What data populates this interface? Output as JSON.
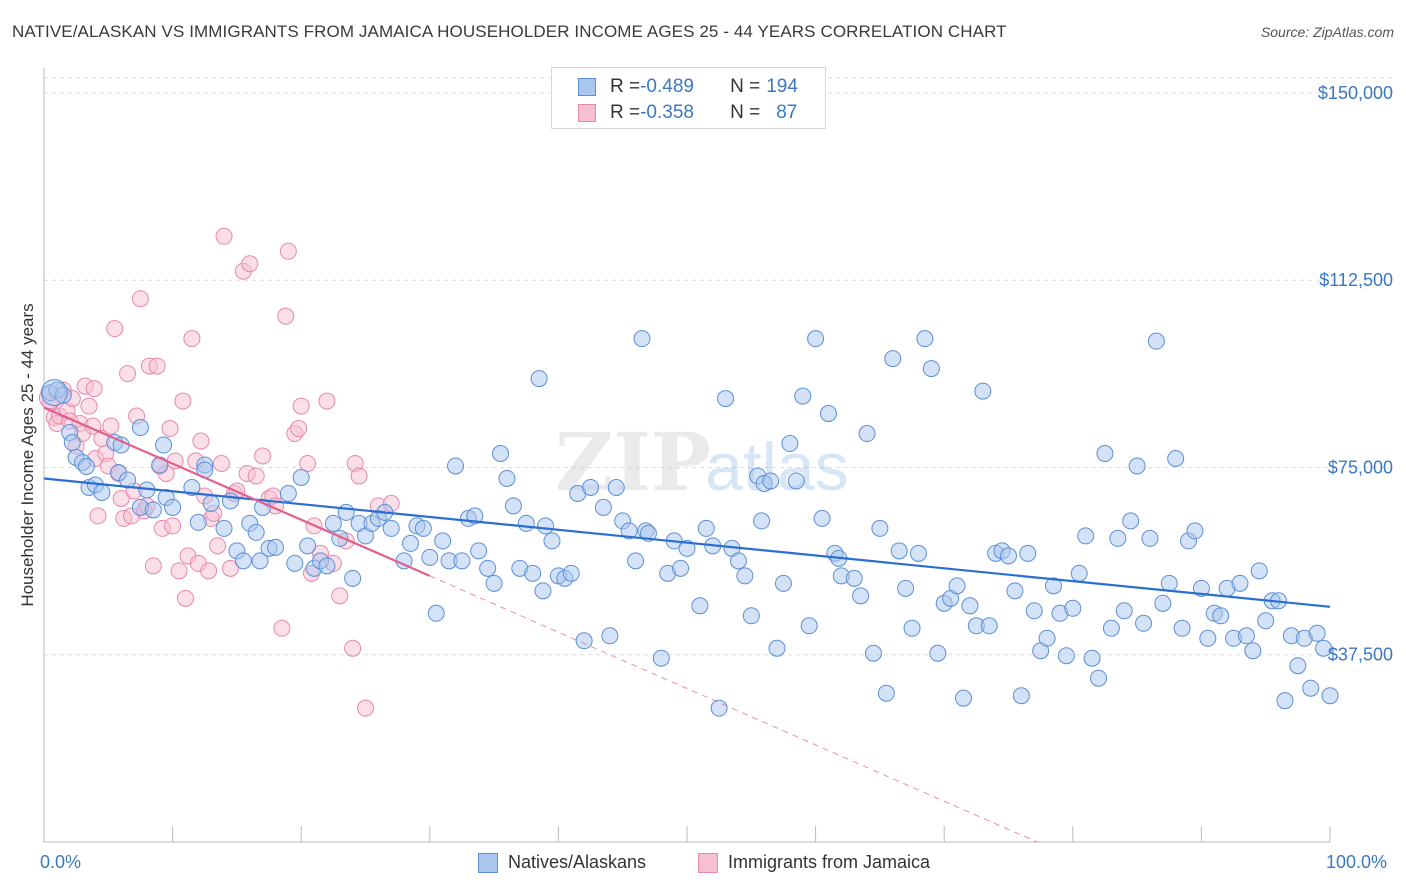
{
  "title": "NATIVE/ALASKAN VS IMMIGRANTS FROM JAMAICA HOUSEHOLDER INCOME AGES 25 - 44 YEARS CORRELATION CHART",
  "source": "Source: ZipAtlas.com",
  "watermark": {
    "part1": "ZIP",
    "part2": "atlas"
  },
  "colors": {
    "blue": "#5b8fd6",
    "blue_fill": "#a9c6ef",
    "blue_line": "#2a6fd0",
    "pink": "#e888aa",
    "pink_fill": "#f6bfd2",
    "pink_line": "#e0608e",
    "axis_text": "#3b78c4",
    "grid": "#dedede"
  },
  "legend_top": [
    {
      "r_label": "R = ",
      "r_value": "-0.489",
      "n_label": "N = ",
      "n_value": "194"
    },
    {
      "r_label": "R = ",
      "r_value": "-0.358",
      "n_label": "N = ",
      "n_value": "87"
    }
  ],
  "legend_bottom": [
    "Natives/Alaskans",
    "Immigrants from Jamaica"
  ],
  "chart_data": {
    "type": "scatter",
    "title": "NATIVE/ALASKAN VS IMMIGRANTS FROM JAMAICA HOUSEHOLDER INCOME AGES 25 - 44 YEARS CORRELATION CHART",
    "xlabel": "",
    "ylabel": "Householder Income Ages 25 - 44 years",
    "x_tick_labels": [
      "0.0%",
      "100.0%"
    ],
    "y_tick_labels": [
      "$37,500",
      "$75,000",
      "$112,500",
      "$150,000"
    ],
    "y_ticks": [
      37500,
      75000,
      112500,
      150000
    ],
    "xlim": [
      0,
      100
    ],
    "ylim": [
      0,
      155000
    ],
    "grid": true,
    "legend_placement": "top-center",
    "series": [
      {
        "name": "Natives/Alaskans",
        "r": -0.489,
        "n": 194,
        "trend": {
          "x": [
            0,
            100
          ],
          "y": [
            72800,
            47100
          ]
        },
        "points": [
          [
            0.5,
            90000
          ],
          [
            1,
            90500
          ],
          [
            1.5,
            89500
          ],
          [
            2,
            82000
          ],
          [
            2.2,
            80000
          ],
          [
            2.5,
            77000
          ],
          [
            3,
            76000
          ],
          [
            3.3,
            75200
          ],
          [
            3.5,
            71000
          ],
          [
            4,
            71500
          ],
          [
            4.5,
            70000
          ],
          [
            5.5,
            80000
          ],
          [
            5.8,
            74000
          ],
          [
            6,
            79500
          ],
          [
            6.5,
            72500
          ],
          [
            7.5,
            83000
          ],
          [
            7.5,
            67000
          ],
          [
            8,
            70500
          ],
          [
            8.5,
            66500
          ],
          [
            9,
            75500
          ],
          [
            9.3,
            79500
          ],
          [
            9.5,
            69000
          ],
          [
            10,
            67000
          ],
          [
            11.5,
            71000
          ],
          [
            12,
            64000
          ],
          [
            12.5,
            75500
          ],
          [
            12.5,
            74500
          ],
          [
            13,
            67800
          ],
          [
            14,
            62800
          ],
          [
            14.5,
            68300
          ],
          [
            15,
            58300
          ],
          [
            15.5,
            56300
          ],
          [
            16,
            63800
          ],
          [
            16.5,
            62000
          ],
          [
            16.8,
            56300
          ],
          [
            17,
            67000
          ],
          [
            17.5,
            58800
          ],
          [
            18,
            59000
          ],
          [
            19,
            69800
          ],
          [
            19.5,
            55800
          ],
          [
            20,
            73000
          ],
          [
            20.5,
            59300
          ],
          [
            21,
            54800
          ],
          [
            21.5,
            56300
          ],
          [
            22,
            55300
          ],
          [
            22.5,
            63800
          ],
          [
            23,
            60800
          ],
          [
            23.5,
            66000
          ],
          [
            24,
            52800
          ],
          [
            24.5,
            63800
          ],
          [
            25,
            61300
          ],
          [
            25.5,
            63800
          ],
          [
            26,
            64800
          ],
          [
            26.5,
            66000
          ],
          [
            27,
            62800
          ],
          [
            28,
            56300
          ],
          [
            28.5,
            59800
          ],
          [
            29,
            63300
          ],
          [
            29.5,
            62800
          ],
          [
            30,
            57000
          ],
          [
            30.5,
            45800
          ],
          [
            31,
            60300
          ],
          [
            31.5,
            56300
          ],
          [
            32,
            75300
          ],
          [
            32.5,
            56300
          ],
          [
            33,
            64800
          ],
          [
            33.5,
            65300
          ],
          [
            33.8,
            58300
          ],
          [
            34.5,
            54800
          ],
          [
            35,
            51800
          ],
          [
            35.5,
            77800
          ],
          [
            36,
            72800
          ],
          [
            36.5,
            67300
          ],
          [
            37,
            54800
          ],
          [
            37.5,
            63800
          ],
          [
            38,
            53800
          ],
          [
            38.5,
            92800
          ],
          [
            38.8,
            50300
          ],
          [
            39,
            63300
          ],
          [
            39.5,
            60300
          ],
          [
            40,
            53300
          ],
          [
            40.5,
            52800
          ],
          [
            41,
            53800
          ],
          [
            41.5,
            69800
          ],
          [
            42,
            40300
          ],
          [
            42.5,
            71000
          ],
          [
            43.5,
            67000
          ],
          [
            44,
            41300
          ],
          [
            44.5,
            71000
          ],
          [
            45,
            64300
          ],
          [
            45.5,
            62300
          ],
          [
            46,
            56300
          ],
          [
            46.5,
            100800
          ],
          [
            46.8,
            62300
          ],
          [
            47,
            61800
          ],
          [
            48,
            36800
          ],
          [
            48.5,
            53800
          ],
          [
            49,
            60300
          ],
          [
            49.5,
            54800
          ],
          [
            50,
            58800
          ],
          [
            51,
            47300
          ],
          [
            51.5,
            62800
          ],
          [
            52,
            59300
          ],
          [
            52.5,
            26800
          ],
          [
            53,
            88800
          ],
          [
            53.5,
            58800
          ],
          [
            54,
            56300
          ],
          [
            54.5,
            53300
          ],
          [
            55,
            45300
          ],
          [
            55.5,
            73300
          ],
          [
            55.8,
            64300
          ],
          [
            56,
            71800
          ],
          [
            56.5,
            72300
          ],
          [
            57,
            38800
          ],
          [
            57.5,
            51800
          ],
          [
            58,
            79800
          ],
          [
            58.5,
            72300
          ],
          [
            59,
            89300
          ],
          [
            59.5,
            43300
          ],
          [
            60,
            100800
          ],
          [
            60.5,
            64800
          ],
          [
            61,
            85800
          ],
          [
            61.5,
            57800
          ],
          [
            61.8,
            56800
          ],
          [
            62,
            53300
          ],
          [
            63,
            52800
          ],
          [
            63.5,
            49300
          ],
          [
            64,
            81800
          ],
          [
            64.5,
            37800
          ],
          [
            65,
            62800
          ],
          [
            65.5,
            29800
          ],
          [
            66,
            96800
          ],
          [
            66.5,
            58300
          ],
          [
            67,
            50800
          ],
          [
            67.5,
            42800
          ],
          [
            68,
            57800
          ],
          [
            68.5,
            100800
          ],
          [
            69,
            94800
          ],
          [
            69.5,
            37800
          ],
          [
            70,
            47800
          ],
          [
            70.5,
            48800
          ],
          [
            71,
            51300
          ],
          [
            71.5,
            28800
          ],
          [
            72,
            47300
          ],
          [
            72.5,
            43300
          ],
          [
            73,
            90300
          ],
          [
            73.5,
            43300
          ],
          [
            74,
            57800
          ],
          [
            74.5,
            58300
          ],
          [
            75,
            57300
          ],
          [
            75.5,
            50300
          ],
          [
            76,
            29300
          ],
          [
            76.5,
            57800
          ],
          [
            77,
            46300
          ],
          [
            77.5,
            38300
          ],
          [
            78,
            40800
          ],
          [
            78.5,
            51300
          ],
          [
            79,
            45800
          ],
          [
            79.5,
            37300
          ],
          [
            80,
            46800
          ],
          [
            80.5,
            53800
          ],
          [
            81,
            61300
          ],
          [
            81.5,
            36800
          ],
          [
            82,
            32800
          ],
          [
            82.5,
            77800
          ],
          [
            83,
            42800
          ],
          [
            83.5,
            60800
          ],
          [
            84,
            46300
          ],
          [
            84.5,
            64300
          ],
          [
            85,
            75300
          ],
          [
            85.5,
            43800
          ],
          [
            86,
            60800
          ],
          [
            86.5,
            100300
          ],
          [
            87,
            47800
          ],
          [
            87.5,
            51800
          ],
          [
            88,
            76800
          ],
          [
            88.5,
            42800
          ],
          [
            89,
            60300
          ],
          [
            89.5,
            62300
          ],
          [
            90,
            50800
          ],
          [
            90.5,
            40800
          ],
          [
            91,
            45800
          ],
          [
            91.5,
            45300
          ],
          [
            92,
            50800
          ],
          [
            92.5,
            40800
          ],
          [
            93,
            51800
          ],
          [
            93.5,
            41300
          ],
          [
            94,
            38300
          ],
          [
            94.5,
            54300
          ],
          [
            95,
            44300
          ],
          [
            95.5,
            48300
          ],
          [
            96,
            48300
          ],
          [
            96.5,
            28300
          ],
          [
            97,
            41300
          ],
          [
            97.5,
            35300
          ],
          [
            98,
            40800
          ],
          [
            98.5,
            30800
          ],
          [
            99,
            41800
          ],
          [
            99.5,
            38800
          ],
          [
            100,
            29300
          ]
        ]
      },
      {
        "name": "Immigrants from Jamaica",
        "r": -0.358,
        "n": 87,
        "trend": {
          "x": [
            0,
            30
          ],
          "y": [
            87000,
            53300
          ]
        },
        "trend_dashed": {
          "x": [
            30,
            79
          ],
          "y": [
            53300,
            -2000
          ]
        },
        "points": [
          [
            0.5,
            88000
          ],
          [
            0.8,
            85000
          ],
          [
            1,
            83800
          ],
          [
            1.2,
            85300
          ],
          [
            1.5,
            90500
          ],
          [
            1.8,
            86300
          ],
          [
            2,
            84300
          ],
          [
            2.2,
            88800
          ],
          [
            2.5,
            79300
          ],
          [
            2.8,
            83800
          ],
          [
            3,
            81800
          ],
          [
            3.2,
            91300
          ],
          [
            3.5,
            87300
          ],
          [
            3.8,
            83300
          ],
          [
            3.9,
            90800
          ],
          [
            4,
            76800
          ],
          [
            4.2,
            65300
          ],
          [
            4.5,
            80800
          ],
          [
            4.8,
            77800
          ],
          [
            5,
            75300
          ],
          [
            5.2,
            83300
          ],
          [
            5.5,
            102800
          ],
          [
            5.8,
            73800
          ],
          [
            6,
            68800
          ],
          [
            6.2,
            64800
          ],
          [
            6.5,
            93800
          ],
          [
            6.8,
            65300
          ],
          [
            7,
            70300
          ],
          [
            7.2,
            85300
          ],
          [
            7.5,
            108800
          ],
          [
            7.8,
            66300
          ],
          [
            8,
            67300
          ],
          [
            8.2,
            95300
          ],
          [
            8.5,
            55300
          ],
          [
            8.8,
            95300
          ],
          [
            9,
            75300
          ],
          [
            9.2,
            62800
          ],
          [
            9.5,
            73800
          ],
          [
            9.8,
            82800
          ],
          [
            10,
            63300
          ],
          [
            10.2,
            76300
          ],
          [
            10.5,
            54300
          ],
          [
            10.8,
            88300
          ],
          [
            11,
            48800
          ],
          [
            11.2,
            57300
          ],
          [
            11.5,
            100800
          ],
          [
            11.8,
            76300
          ],
          [
            12,
            55800
          ],
          [
            12.2,
            80300
          ],
          [
            12.5,
            69300
          ],
          [
            12.8,
            54300
          ],
          [
            13,
            64800
          ],
          [
            13.2,
            65800
          ],
          [
            13.5,
            59300
          ],
          [
            13.8,
            75800
          ],
          [
            14,
            121300
          ],
          [
            14.5,
            54800
          ],
          [
            14.8,
            69800
          ],
          [
            15,
            70300
          ],
          [
            15.5,
            114300
          ],
          [
            15.8,
            73800
          ],
          [
            16,
            115800
          ],
          [
            16.5,
            73300
          ],
          [
            17,
            77300
          ],
          [
            17.5,
            68800
          ],
          [
            17.8,
            69300
          ],
          [
            18,
            67300
          ],
          [
            18.5,
            42800
          ],
          [
            18.8,
            105300
          ],
          [
            19,
            118300
          ],
          [
            19.5,
            81800
          ],
          [
            19.8,
            82800
          ],
          [
            20,
            87300
          ],
          [
            20.5,
            75800
          ],
          [
            20.8,
            53800
          ],
          [
            21,
            63300
          ],
          [
            21.5,
            57800
          ],
          [
            22,
            88300
          ],
          [
            22.5,
            55800
          ],
          [
            23,
            49300
          ],
          [
            23.5,
            60300
          ],
          [
            24,
            38800
          ],
          [
            24.2,
            75800
          ],
          [
            24.5,
            73300
          ],
          [
            25,
            26800
          ],
          [
            26,
            67300
          ],
          [
            27,
            67800
          ]
        ]
      }
    ]
  }
}
